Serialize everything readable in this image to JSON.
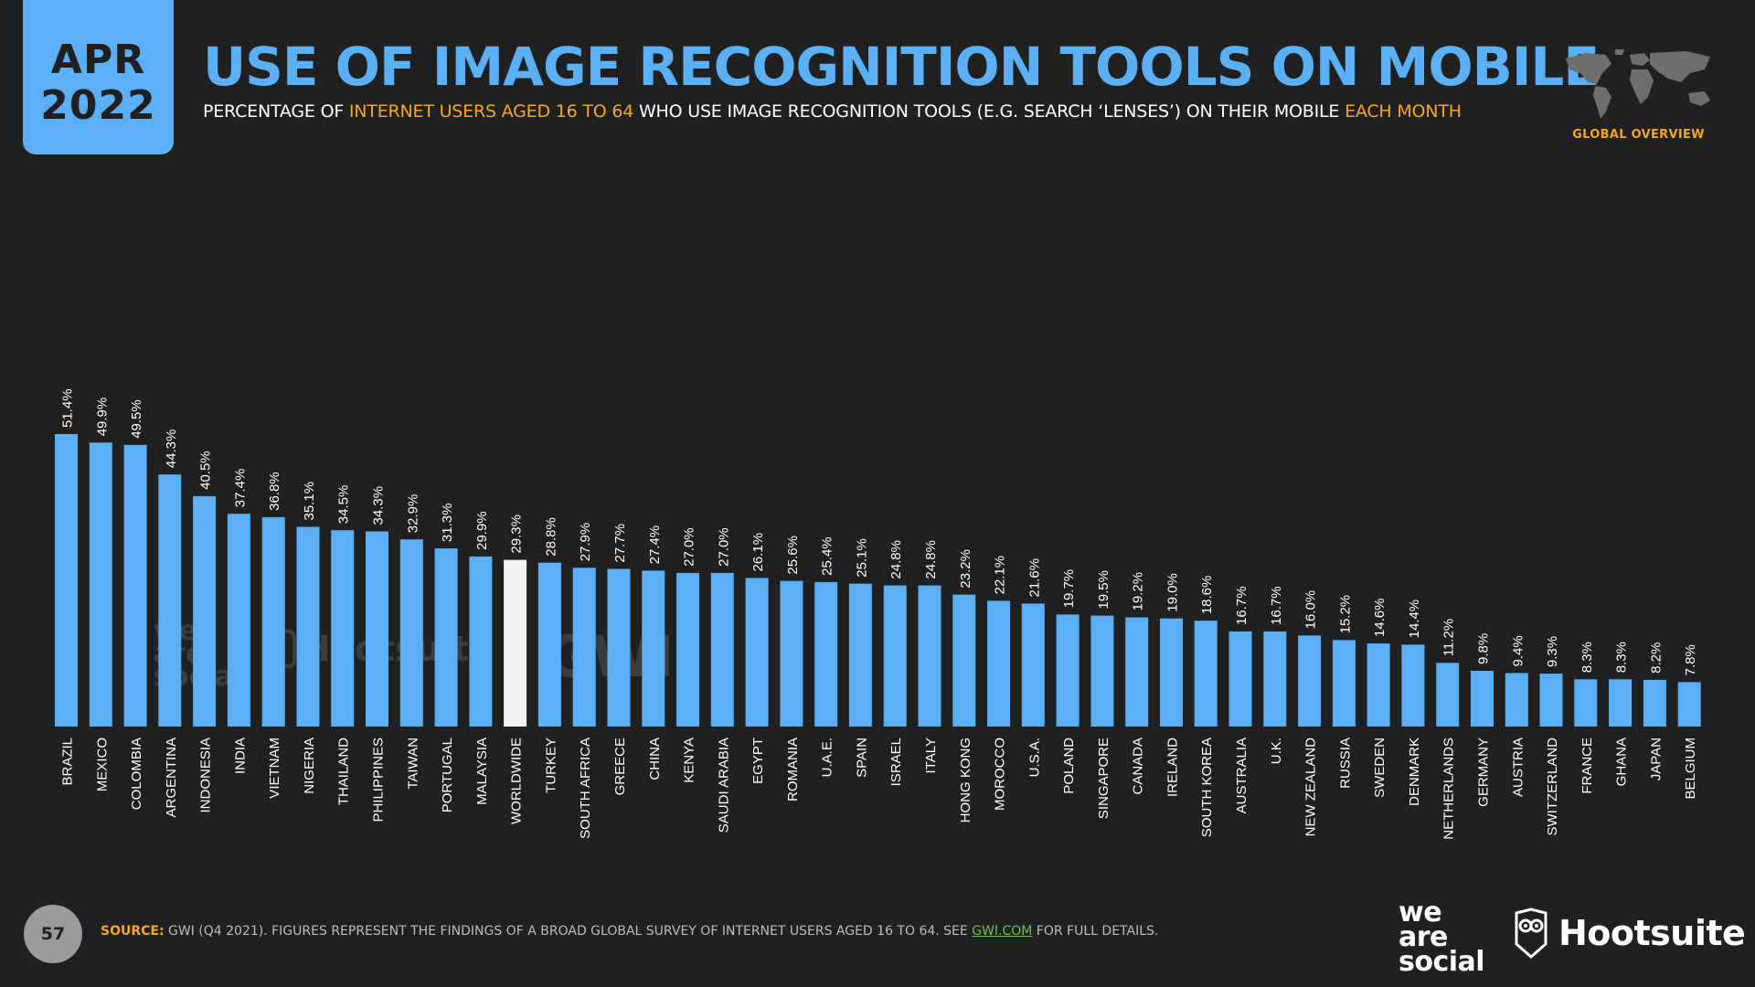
{
  "header": {
    "date_month": "APR",
    "date_year": "2022",
    "title": "USE OF IMAGE RECOGNITION TOOLS ON MOBILE",
    "subtitle_parts": [
      "PERCENTAGE OF ",
      "INTERNET USERS AGED 16 TO 64",
      " WHO USE IMAGE RECOGNITION TOOLS (E.G. SEARCH ‘LENSES’) ON THEIR MOBILE ",
      "EACH MONTH"
    ],
    "section_label": "GLOBAL OVERVIEW"
  },
  "chart_data": {
    "type": "bar",
    "categories": [
      "BRAZIL",
      "MEXICO",
      "COLOMBIA",
      "ARGENTINA",
      "INDONESIA",
      "INDIA",
      "VIETNAM",
      "NIGERIA",
      "THAILAND",
      "PHILIPPINES",
      "TAIWAN",
      "PORTUGAL",
      "MALAYSIA",
      "WORLDWIDE",
      "TURKEY",
      "SOUTH AFRICA",
      "GREECE",
      "CHINA",
      "KENYA",
      "SAUDI ARABIA",
      "EGYPT",
      "ROMANIA",
      "U.A.E.",
      "SPAIN",
      "ISRAEL",
      "ITALY",
      "HONG KONG",
      "MOROCCO",
      "U.S.A.",
      "POLAND",
      "SINGAPORE",
      "CANADA",
      "IRELAND",
      "SOUTH KOREA",
      "AUSTRALIA",
      "U.K.",
      "NEW ZEALAND",
      "RUSSIA",
      "SWEDEN",
      "DENMARK",
      "NETHERLANDS",
      "GERMANY",
      "AUSTRIA",
      "SWITZERLAND",
      "FRANCE",
      "GHANA",
      "JAPAN",
      "BELGIUM"
    ],
    "values": [
      51.4,
      49.9,
      49.5,
      44.3,
      40.5,
      37.4,
      36.8,
      35.1,
      34.5,
      34.3,
      32.9,
      31.3,
      29.9,
      29.3,
      28.8,
      27.9,
      27.7,
      27.4,
      27.0,
      27.0,
      26.1,
      25.6,
      25.4,
      25.1,
      24.8,
      24.8,
      23.2,
      22.1,
      21.6,
      19.7,
      19.5,
      19.2,
      19.0,
      18.6,
      16.7,
      16.7,
      16.0,
      15.2,
      14.6,
      14.4,
      11.2,
      9.8,
      9.4,
      9.3,
      8.3,
      8.3,
      8.2,
      7.8
    ],
    "value_labels": [
      "51.4%",
      "49.9%",
      "49.5%",
      "44.3%",
      "40.5%",
      "37.4%",
      "36.8%",
      "35.1%",
      "34.5%",
      "34.3%",
      "32.9%",
      "31.3%",
      "29.9%",
      "29.3%",
      "28.8%",
      "27.9%",
      "27.7%",
      "27.4%",
      "27.0%",
      "27.0%",
      "26.1%",
      "25.6%",
      "25.4%",
      "25.1%",
      "24.8%",
      "24.8%",
      "23.2%",
      "22.1%",
      "21.6%",
      "19.7%",
      "19.5%",
      "19.2%",
      "19.0%",
      "18.6%",
      "16.7%",
      "16.7%",
      "16.0%",
      "15.2%",
      "14.6%",
      "14.4%",
      "11.2%",
      "9.8%",
      "9.4%",
      "9.3%",
      "8.3%",
      "8.3%",
      "8.2%",
      "7.8%"
    ],
    "highlight_category": "WORLDWIDE",
    "ylim": [
      0,
      51.4
    ],
    "grid": false,
    "colors": {
      "bar": "#5aaff5",
      "highlight": "#f2f2f2"
    }
  },
  "watermarks": {
    "we_are_social": [
      "we",
      "are",
      "social"
    ],
    "hootsuite": "Hootsuite",
    "gwi": "GWI."
  },
  "footer": {
    "page_number": "57",
    "source_label": "SOURCE:",
    "source_text": " GWI (Q4 2021). FIGURES REPRESENT THE FINDINGS OF A BROAD GLOBAL SURVEY OF INTERNET USERS AGED 16 TO 64. SEE ",
    "source_link": "GWI.COM",
    "source_tail": " FOR FULL DETAILS.",
    "logo_we_are_social": [
      "we",
      "are",
      "social"
    ],
    "logo_hootsuite": "Hootsuite",
    "icons": [
      "world-map-icon",
      "owl-icon"
    ]
  }
}
